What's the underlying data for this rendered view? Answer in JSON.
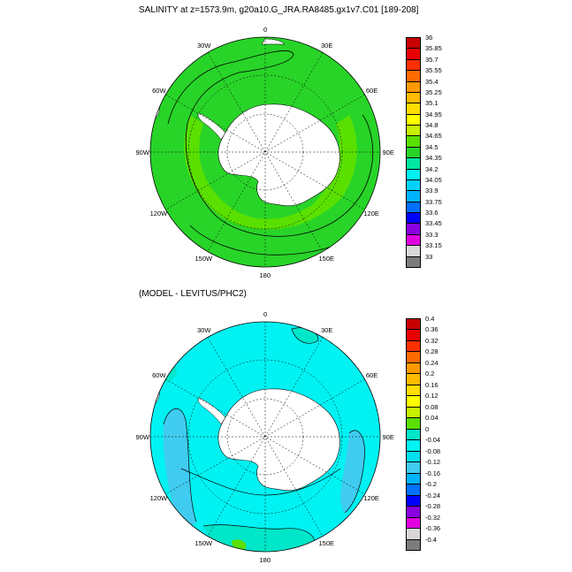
{
  "panels": [
    {
      "title": "SALINITY at z=1573.9m, g20a10.G_JRA.RA8485.gx1v7.C01 [189-208]",
      "lon_labels": [
        "0",
        "30E",
        "60E",
        "90E",
        "120E",
        "150E",
        "180",
        "150W",
        "120W",
        "90W",
        "60W",
        "30W"
      ],
      "colorbar": {
        "labels": [
          "36",
          "35.85",
          "35.7",
          "35.55",
          "35.4",
          "35.25",
          "35.1",
          "34.95",
          "34.8",
          "34.65",
          "34.5",
          "34.35",
          "34.2",
          "34.05",
          "33.9",
          "33.75",
          "33.6",
          "33.45",
          "33.3",
          "33.15",
          "33"
        ],
        "colors": [
          "#c80000",
          "#e80000",
          "#ff3000",
          "#ff6a00",
          "#ff9900",
          "#ffbb00",
          "#ffdd00",
          "#ffff00",
          "#c8f000",
          "#5ae000",
          "#28d428",
          "#00e6a0",
          "#00f2f2",
          "#00d2ff",
          "#00b4ff",
          "#0070ff",
          "#0000ff",
          "#8a00e0",
          "#e000e0",
          "#d8d8d8",
          "#7c7c7c"
        ]
      }
    },
    {
      "title": "(MODEL - LEVITUS/PHC2)",
      "lon_labels": [
        "0",
        "30E",
        "60E",
        "90E",
        "120E",
        "150E",
        "180",
        "150W",
        "120W",
        "90W",
        "60W",
        "30W"
      ],
      "colorbar": {
        "labels": [
          "0.4",
          "0.36",
          "0.32",
          "0.28",
          "0.24",
          "0.2",
          "0.16",
          "0.12",
          "0.08",
          "0.04",
          "0",
          "-0.04",
          "-0.08",
          "-0.12",
          "-0.16",
          "-0.2",
          "-0.24",
          "-0.28",
          "-0.32",
          "-0.36",
          "-0.4"
        ],
        "colors": [
          "#c80000",
          "#e80000",
          "#ff3000",
          "#ff6a00",
          "#ff9900",
          "#ffbb00",
          "#ffdd00",
          "#ffff00",
          "#c8f000",
          "#5ae000",
          "#00e6c8",
          "#00f2f2",
          "#00e0f0",
          "#40ccf0",
          "#00b4ff",
          "#0070ff",
          "#0000ff",
          "#8a00e0",
          "#e000e0",
          "#d8d8d8",
          "#7c7c7c"
        ]
      }
    }
  ]
}
